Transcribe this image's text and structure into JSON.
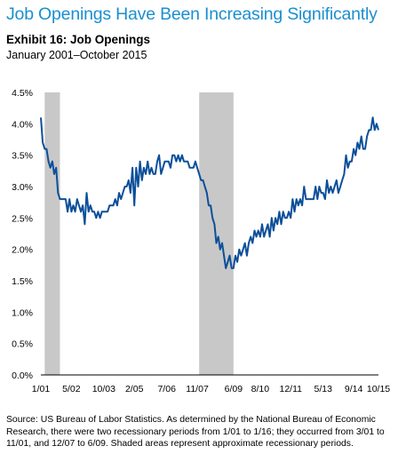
{
  "headline": "Job Openings Have Been Increasing Significantly",
  "source_note": "Source: US Bureau of Labor Statistics. As determined by the National Bureau of Economic Research, there were two recessionary periods from 1/01 to 1/16; they occurred from 3/01 to 11/01, and 12/07 to 6/09. Shaded areas represent approximate recessionary periods.",
  "colors": {
    "headline": "#1a8fd0",
    "line": "#0d4f9a",
    "recession": "#c8c8c8"
  },
  "chart_data": {
    "type": "line",
    "title": "Exhibit 16: Job Openings",
    "subtitle": "January 2001–October 2015",
    "xlabel": "",
    "ylabel": "",
    "x_unit": "months since 2001-01 (index 0 = 1/01, 177 = 10/15)",
    "xlim": [
      0,
      177
    ],
    "ylim": [
      0,
      4.5
    ],
    "y_ticks": [
      0.0,
      0.5,
      1.0,
      1.5,
      2.0,
      2.5,
      3.0,
      3.5,
      4.0,
      4.5
    ],
    "y_tick_labels": [
      "0.0%",
      "0.5%",
      "1.0%",
      "1.5%",
      "2.0%",
      "2.5%",
      "3.0%",
      "3.5%",
      "4.0%",
      "4.5%"
    ],
    "x_ticks": [
      {
        "label": "1/01",
        "x": 0
      },
      {
        "label": "5/02",
        "x": 16
      },
      {
        "label": "10/03",
        "x": 33
      },
      {
        "label": "2/05",
        "x": 49
      },
      {
        "label": "7/06",
        "x": 66
      },
      {
        "label": "11/07",
        "x": 82
      },
      {
        "label": "6/09",
        "x": 101
      },
      {
        "label": "8/10",
        "x": 115
      },
      {
        "label": "12/11",
        "x": 131
      },
      {
        "label": "5/13",
        "x": 148
      },
      {
        "label": "9/14",
        "x": 164
      },
      {
        "label": "10/15",
        "x": 177
      }
    ],
    "recessions": [
      {
        "start": 2,
        "end": 10
      },
      {
        "start": 83,
        "end": 101
      }
    ],
    "grid": false,
    "legend": "none",
    "series": [
      {
        "points": [
          [
            0,
            4.1
          ],
          [
            1,
            3.7
          ],
          [
            2,
            3.6
          ],
          [
            3,
            3.6
          ],
          [
            4,
            3.4
          ],
          [
            5,
            3.3
          ],
          [
            6,
            3.4
          ],
          [
            7,
            3.2
          ],
          [
            8,
            3.3
          ],
          [
            9,
            2.9
          ],
          [
            10,
            2.8
          ],
          [
            11,
            2.8
          ],
          [
            12,
            2.8
          ],
          [
            13,
            2.8
          ],
          [
            14,
            2.6
          ],
          [
            15,
            2.8
          ],
          [
            16,
            2.6
          ],
          [
            17,
            2.7
          ],
          [
            18,
            2.6
          ],
          [
            19,
            2.8
          ],
          [
            20,
            2.7
          ],
          [
            21,
            2.6
          ],
          [
            22,
            2.7
          ],
          [
            23,
            2.4
          ],
          [
            24,
            2.9
          ],
          [
            25,
            2.6
          ],
          [
            26,
            2.7
          ],
          [
            27,
            2.6
          ],
          [
            28,
            2.6
          ],
          [
            29,
            2.5
          ],
          [
            30,
            2.6
          ],
          [
            31,
            2.5
          ],
          [
            32,
            2.6
          ],
          [
            33,
            2.6
          ],
          [
            34,
            2.6
          ],
          [
            35,
            2.6
          ],
          [
            36,
            2.7
          ],
          [
            37,
            2.7
          ],
          [
            38,
            2.7
          ],
          [
            39,
            2.8
          ],
          [
            40,
            2.7
          ],
          [
            41,
            2.9
          ],
          [
            42,
            2.8
          ],
          [
            43,
            2.9
          ],
          [
            44,
            3.0
          ],
          [
            45,
            3.0
          ],
          [
            46,
            3.1
          ],
          [
            47,
            2.9
          ],
          [
            48,
            3.3
          ],
          [
            49,
            2.7
          ],
          [
            50,
            3.3
          ],
          [
            51,
            3.0
          ],
          [
            52,
            3.4
          ],
          [
            53,
            3.1
          ],
          [
            54,
            3.3
          ],
          [
            55,
            3.2
          ],
          [
            56,
            3.4
          ],
          [
            57,
            3.2
          ],
          [
            58,
            3.3
          ],
          [
            59,
            3.2
          ],
          [
            60,
            3.2
          ],
          [
            61,
            3.4
          ],
          [
            62,
            3.5
          ],
          [
            63,
            3.2
          ],
          [
            64,
            3.3
          ],
          [
            65,
            3.4
          ],
          [
            66,
            3.4
          ],
          [
            67,
            3.4
          ],
          [
            68,
            3.3
          ],
          [
            69,
            3.5
          ],
          [
            70,
            3.5
          ],
          [
            71,
            3.4
          ],
          [
            72,
            3.5
          ],
          [
            73,
            3.4
          ],
          [
            74,
            3.5
          ],
          [
            75,
            3.4
          ],
          [
            76,
            3.4
          ],
          [
            77,
            3.4
          ],
          [
            78,
            3.3
          ],
          [
            79,
            3.3
          ],
          [
            80,
            3.3
          ],
          [
            81,
            3.4
          ],
          [
            82,
            3.3
          ],
          [
            83,
            3.2
          ],
          [
            84,
            3.1
          ],
          [
            85,
            3.1
          ],
          [
            86,
            3.0
          ],
          [
            87,
            2.9
          ],
          [
            88,
            2.7
          ],
          [
            89,
            2.7
          ],
          [
            90,
            2.5
          ],
          [
            91,
            2.4
          ],
          [
            92,
            2.1
          ],
          [
            93,
            2.2
          ],
          [
            94,
            2.0
          ],
          [
            95,
            2.1
          ],
          [
            96,
            1.9
          ],
          [
            97,
            1.7
          ],
          [
            98,
            1.8
          ],
          [
            99,
            1.9
          ],
          [
            100,
            1.7
          ],
          [
            101,
            1.7
          ],
          [
            102,
            1.9
          ],
          [
            103,
            1.8
          ],
          [
            104,
            2.0
          ],
          [
            105,
            1.9
          ],
          [
            106,
            2.0
          ],
          [
            107,
            2.1
          ],
          [
            108,
            1.9
          ],
          [
            109,
            2.1
          ],
          [
            110,
            2.2
          ],
          [
            111,
            2.1
          ],
          [
            112,
            2.3
          ],
          [
            113,
            2.2
          ],
          [
            114,
            2.3
          ],
          [
            115,
            2.2
          ],
          [
            116,
            2.4
          ],
          [
            117,
            2.2
          ],
          [
            118,
            2.3
          ],
          [
            119,
            2.4
          ],
          [
            120,
            2.2
          ],
          [
            121,
            2.5
          ],
          [
            122,
            2.3
          ],
          [
            123,
            2.5
          ],
          [
            124,
            2.4
          ],
          [
            125,
            2.6
          ],
          [
            126,
            2.4
          ],
          [
            127,
            2.6
          ],
          [
            128,
            2.5
          ],
          [
            129,
            2.5
          ],
          [
            130,
            2.6
          ],
          [
            131,
            2.5
          ],
          [
            132,
            2.8
          ],
          [
            133,
            2.6
          ],
          [
            134,
            2.8
          ],
          [
            135,
            2.7
          ],
          [
            136,
            2.8
          ],
          [
            137,
            2.7
          ],
          [
            138,
            3.0
          ],
          [
            139,
            2.8
          ],
          [
            140,
            2.8
          ],
          [
            141,
            2.8
          ],
          [
            142,
            2.8
          ],
          [
            143,
            2.8
          ],
          [
            144,
            3.0
          ],
          [
            145,
            2.8
          ],
          [
            146,
            3.0
          ],
          [
            147,
            2.9
          ],
          [
            148,
            2.9
          ],
          [
            149,
            2.8
          ],
          [
            150,
            3.1
          ],
          [
            151,
            2.9
          ],
          [
            152,
            3.0
          ],
          [
            153,
            2.9
          ],
          [
            154,
            3.0
          ],
          [
            155,
            3.1
          ],
          [
            156,
            2.9
          ],
          [
            157,
            3.0
          ],
          [
            158,
            3.1
          ],
          [
            159,
            3.2
          ],
          [
            160,
            3.5
          ],
          [
            161,
            3.3
          ],
          [
            162,
            3.4
          ],
          [
            163,
            3.4
          ],
          [
            164,
            3.6
          ],
          [
            165,
            3.5
          ],
          [
            166,
            3.7
          ],
          [
            167,
            3.6
          ],
          [
            168,
            3.8
          ],
          [
            169,
            3.6
          ],
          [
            170,
            3.6
          ],
          [
            171,
            3.8
          ],
          [
            172,
            3.9
          ],
          [
            173,
            3.9
          ],
          [
            174,
            4.1
          ],
          [
            175,
            3.9
          ],
          [
            176,
            4.0
          ],
          [
            177,
            3.9
          ]
        ]
      }
    ]
  }
}
